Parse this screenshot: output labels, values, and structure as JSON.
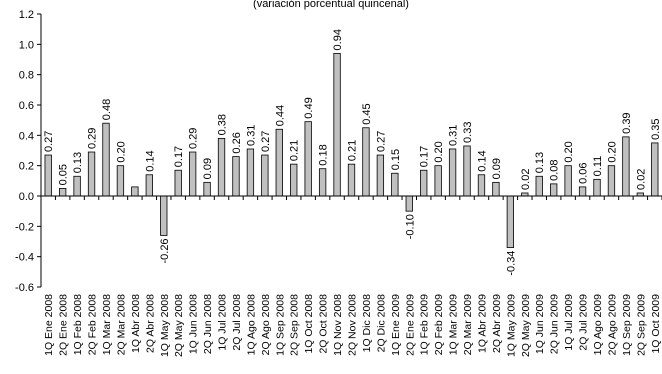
{
  "chart_data": {
    "type": "bar",
    "subtitle": "(variación porcentual quincenal)",
    "categories": [
      "1Q Ene 2008",
      "2Q Ene 2008",
      "1Q Feb 2008",
      "2Q Feb 2008",
      "1Q Mar 2008",
      "2Q Mar 2008",
      "1Q Abr 2008",
      "2Q Abr 2008",
      "1Q May 2008",
      "2Q May 2008",
      "1Q Jun 2008",
      "2Q Jun 2008",
      "1Q Jul 2008",
      "2Q Jul 2008",
      "1Q Ago 2008",
      "2Q Ago 2008",
      "1Q Sep 2008",
      "2Q Sep 2008",
      "1Q Oct 2008",
      "2Q Oct 2008",
      "1Q Nov 2008",
      "2Q Nov 2008",
      "1Q Dic 2008",
      "2Q Dic 2008",
      "1Q Ene 2009",
      "2Q Ene 2009",
      "1Q Feb 2009",
      "2Q Feb 2009",
      "1Q Mar 2009",
      "2Q Mar 2009",
      "1Q Abr 2009",
      "2Q Abr 2009",
      "1Q May 2009",
      "2Q May 2009",
      "1Q Jun 2009",
      "2Q Jun 2009",
      "1Q Jul 2009",
      "2Q Jul 2009",
      "1Q Ago 2009",
      "2Q Ago 2009",
      "1Q Sep 2009",
      "2Q Sep 2009",
      "1Q Oct 2009"
    ],
    "values": [
      0.27,
      0.05,
      0.13,
      0.29,
      0.48,
      0.2,
      0.06,
      0.14,
      -0.26,
      0.17,
      0.29,
      0.09,
      0.38,
      0.26,
      0.31,
      0.27,
      0.44,
      0.21,
      0.49,
      0.18,
      0.94,
      0.21,
      0.45,
      0.27,
      0.15,
      -0.1,
      0.17,
      0.2,
      0.31,
      0.33,
      0.14,
      0.09,
      -0.34,
      0.02,
      0.13,
      0.08,
      0.2,
      0.06,
      0.11,
      0.2,
      0.39,
      0.02,
      0.35
    ],
    "value_labels": [
      "0.27",
      "0.05",
      "0.13",
      "0.29",
      "0.48",
      "0.20",
      "0.06",
      "0.14",
      "-0.26",
      "0.17",
      "0.29",
      "0.09",
      "0.38",
      "0.26",
      "0.31",
      "0.27",
      "0.44",
      "0.21",
      "0.49",
      "0.18",
      "0.94",
      "0.21",
      "0.45",
      "0.27",
      "0.15",
      "-0.10",
      "0.17",
      "0.20",
      "0.31",
      "0.33",
      "0.14",
      "0.09",
      "-0.34",
      "0.02",
      "0.13",
      "0.08",
      "0.20",
      "0.06",
      "0.11",
      "0.20",
      "0.39",
      "0.02",
      "0.35"
    ],
    "show_value_label": [
      true,
      true,
      true,
      true,
      true,
      true,
      false,
      true,
      true,
      true,
      true,
      true,
      true,
      true,
      true,
      true,
      true,
      true,
      true,
      true,
      true,
      true,
      true,
      true,
      true,
      true,
      true,
      true,
      true,
      true,
      true,
      true,
      true,
      true,
      true,
      true,
      true,
      true,
      true,
      true,
      true,
      true,
      true
    ],
    "ylim": [
      -0.6,
      1.2
    ],
    "yticks": [
      -0.6,
      -0.4,
      -0.2,
      0.0,
      0.2,
      0.4,
      0.6,
      0.8,
      1.0,
      1.2
    ],
    "ytick_labels": [
      "-0.6",
      "-0.4",
      "-0.2",
      "0.0",
      "0.2",
      "0.4",
      "0.6",
      "0.8",
      "1.0",
      "1.2"
    ],
    "grid": false,
    "legend": false,
    "bar_color": "#c0c0c0",
    "bar_edge_color": "#000000"
  }
}
